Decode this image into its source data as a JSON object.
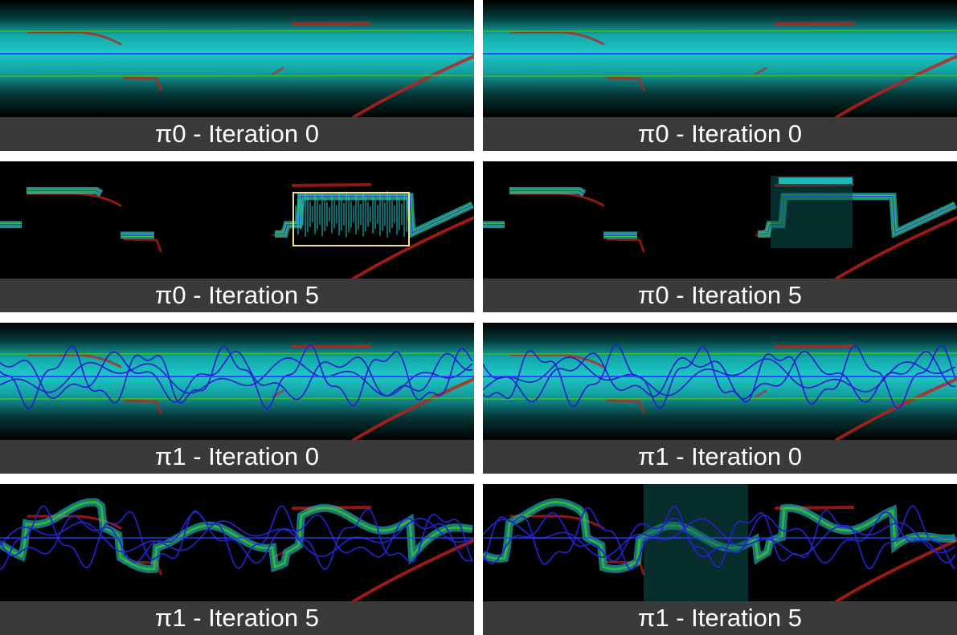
{
  "panels": [
    {
      "caption": "π0 - Iteration 0",
      "variant": "band",
      "curves": 0,
      "highlight": false,
      "jumpy": false
    },
    {
      "caption": "π0 - Iteration 0",
      "variant": "band",
      "curves": 0,
      "highlight": false,
      "jumpy": false
    },
    {
      "caption": "π0 - Iteration 5",
      "variant": "track",
      "curves": 0,
      "highlight": true,
      "jumpy": false
    },
    {
      "caption": "π0 - Iteration 5",
      "variant": "track",
      "curves": 0,
      "highlight": false,
      "jumpy": true
    },
    {
      "caption": "π1 - Iteration 0",
      "variant": "band",
      "curves": 3,
      "highlight": false,
      "jumpy": false
    },
    {
      "caption": "π1 - Iteration 0",
      "variant": "band",
      "curves": 3,
      "highlight": false,
      "jumpy": false
    },
    {
      "caption": "π1 - Iteration 5",
      "variant": "wavy",
      "curves": 3,
      "highlight": false,
      "jumpy": false
    },
    {
      "caption": "π1 - Iteration 5",
      "variant": "wavy",
      "curves": 3,
      "highlight": false,
      "jumpy": true
    }
  ],
  "colors": {
    "band": "#1fc8c8",
    "median": "#2f3fff",
    "bounds": "#3fbf2f",
    "red": "#c0201a",
    "curve": "#2222cc",
    "highlight": "#f0e090"
  }
}
